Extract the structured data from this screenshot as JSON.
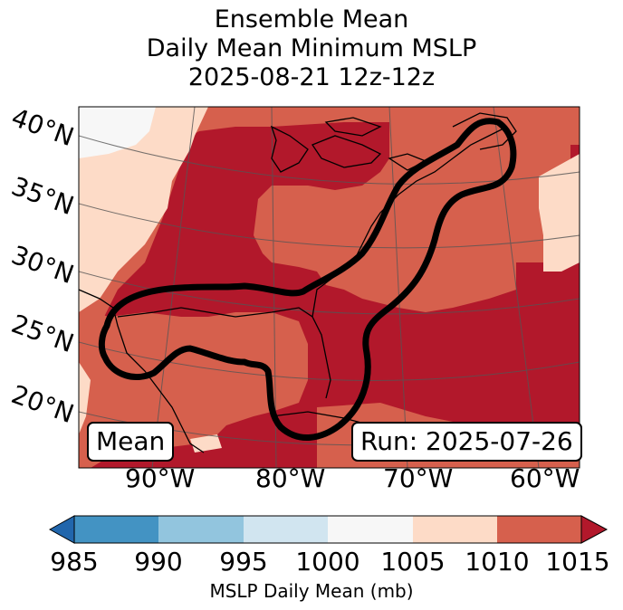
{
  "title": {
    "line1": "Ensemble Mean",
    "line2": "Daily Mean Minimum MSLP",
    "line3": "2025-08-21 12z-12z"
  },
  "map": {
    "lat_labels": [
      "40°N",
      "35°N",
      "30°N",
      "25°N",
      "20°N"
    ],
    "lon_labels": [
      "90°W",
      "80°W",
      "70°W",
      "60°W"
    ],
    "mean_box": "Mean",
    "run_box": "Run: 2025-07-26",
    "fill_colors": {
      "lt1000": "#f7f7f7",
      "r1005": "#fddbc7",
      "r1010": "#d6604d",
      "r1015": "#b2182b"
    },
    "contour_color": "#000000"
  },
  "colorbar": {
    "ticks": [
      "985",
      "990",
      "995",
      "1000",
      "1005",
      "1010",
      "1015"
    ],
    "label": "MSLP Daily Mean (mb)",
    "colors": [
      "#2166ac",
      "#4393c3",
      "#92c5de",
      "#d1e5f0",
      "#f7f7f7",
      "#fddbc7",
      "#d6604d",
      "#b2182b"
    ]
  }
}
